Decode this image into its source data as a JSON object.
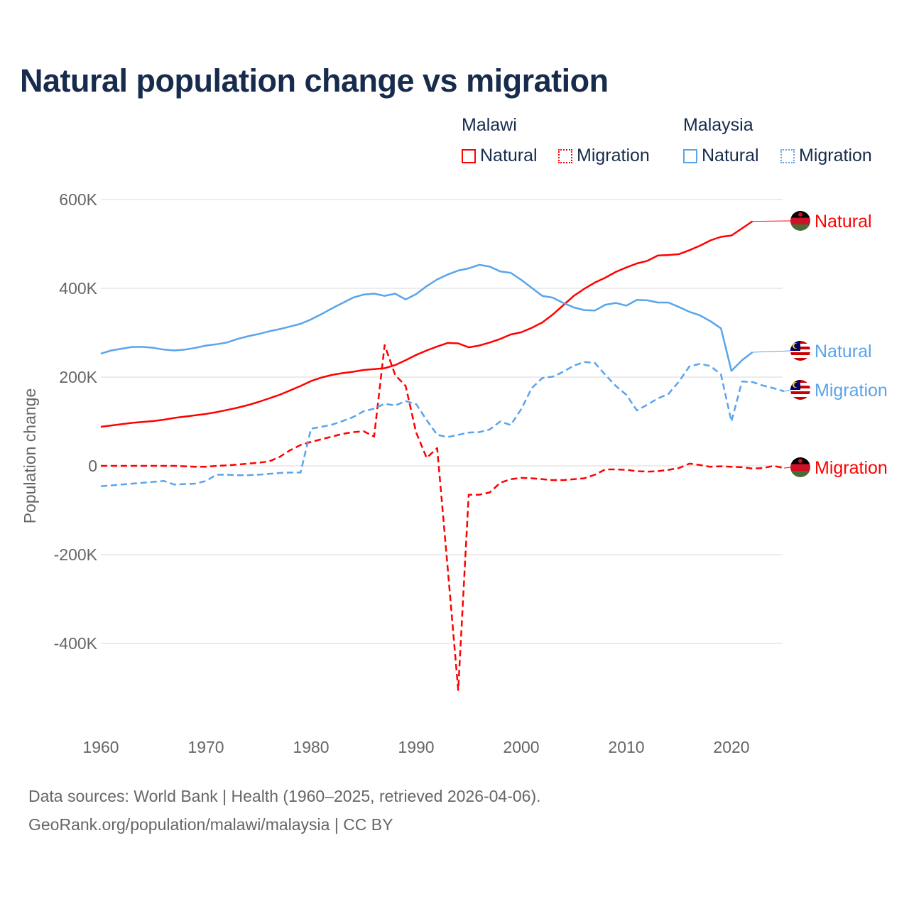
{
  "title": "Natural population change vs migration",
  "legend": {
    "groups": [
      {
        "name": "Malawi",
        "items": [
          {
            "label": "Natural",
            "style": "solid",
            "color": "#ff0000"
          },
          {
            "label": "Migration",
            "style": "dotted",
            "color": "#ff0000"
          }
        ]
      },
      {
        "name": "Malaysia",
        "items": [
          {
            "label": "Natural",
            "style": "solid",
            "color": "#5aa4eb"
          },
          {
            "label": "Migration",
            "style": "dotted",
            "color": "#5aa4eb"
          }
        ]
      }
    ]
  },
  "footer": {
    "line1": "Data sources: World Bank | Health (1960–2025, retrieved 2026-04-06).",
    "line2": "GeoRank.org/population/malawi/malaysia | CC BY"
  },
  "chart_data": {
    "type": "line",
    "title": "Natural population change vs migration",
    "xlabel": "",
    "ylabel": "Population change",
    "xlim": [
      1960,
      2025
    ],
    "ylim": [
      -500000,
      600000
    ],
    "x_ticks": [
      1960,
      1970,
      1980,
      1990,
      2000,
      2010,
      2020
    ],
    "x_tick_labels": [
      "1960",
      "1970",
      "1980",
      "1990",
      "2000",
      "2010",
      "2020"
    ],
    "y_ticks": [
      600000,
      400000,
      200000,
      0,
      -200000,
      -400000
    ],
    "y_tick_labels": [
      "600K",
      "400K",
      "200K",
      "0",
      "-200K",
      "-400K"
    ],
    "grid": true,
    "legend_position": "top-right",
    "start_year": 1960,
    "series": [
      {
        "name": "Malawi Natural",
        "end_label": "Natural",
        "country": "Malawi",
        "color": "#ff0000",
        "dash": false,
        "values_k": [
          88,
          91,
          94,
          97,
          99,
          101,
          104,
          108,
          111,
          114,
          117,
          121,
          126,
          131,
          137,
          144,
          152,
          160,
          170,
          180,
          191,
          199,
          205,
          209,
          212,
          216,
          218,
          220,
          227,
          238,
          250,
          260,
          269,
          277,
          276,
          267,
          271,
          278,
          286,
          296,
          301,
          311,
          323,
          341,
          362,
          383,
          399,
          413,
          424,
          437,
          447,
          456,
          462,
          474,
          475,
          477,
          486,
          496,
          508,
          516,
          519,
          535,
          551
        ]
      },
      {
        "name": "Malawi Migration",
        "end_label": "Migration",
        "country": "Malawi",
        "color": "#ff0000",
        "dash": true,
        "values_k": [
          0,
          0,
          0,
          0,
          0,
          0,
          0,
          0,
          -1,
          -2,
          -2,
          0,
          1,
          3,
          5,
          7,
          10,
          20,
          35,
          47,
          54,
          60,
          66,
          72,
          76,
          78,
          66,
          272,
          205,
          180,
          75,
          18,
          40,
          -230,
          -505,
          -65,
          -65,
          -60,
          -38,
          -30,
          -27,
          -28,
          -30,
          -32,
          -32,
          -30,
          -28,
          -20,
          -8,
          -8,
          -9,
          -12,
          -13,
          -12,
          -9,
          -5,
          5,
          2,
          -2,
          -1,
          -2,
          -3,
          -6,
          -5,
          0,
          -5
        ]
      },
      {
        "name": "Malaysia Natural",
        "end_label": "Natural",
        "country": "Malaysia",
        "color": "#5aa4eb",
        "dash": false,
        "values_k": [
          253,
          260,
          264,
          268,
          268,
          266,
          262,
          260,
          262,
          266,
          271,
          274,
          278,
          286,
          292,
          297,
          303,
          308,
          314,
          320,
          330,
          342,
          355,
          367,
          379,
          386,
          388,
          383,
          388,
          375,
          387,
          405,
          420,
          431,
          440,
          445,
          453,
          449,
          438,
          435,
          419,
          401,
          383,
          379,
          367,
          357,
          351,
          350,
          363,
          367,
          361,
          374,
          373,
          368,
          368,
          358,
          347,
          339,
          326,
          310,
          214,
          238,
          256
        ]
      },
      {
        "name": "Malaysia Migration",
        "end_label": "Migration",
        "country": "Malaysia",
        "color": "#5aa4eb",
        "dash": true,
        "values_k": [
          -46,
          -44,
          -42,
          -40,
          -38,
          -36,
          -34,
          -42,
          -41,
          -40,
          -34,
          -20,
          -20,
          -21,
          -21,
          -20,
          -18,
          -16,
          -15,
          -15,
          84,
          88,
          93,
          101,
          110,
          123,
          129,
          140,
          136,
          146,
          139,
          103,
          70,
          65,
          70,
          75,
          76,
          82,
          100,
          92,
          128,
          175,
          198,
          201,
          212,
          226,
          234,
          232,
          205,
          180,
          160,
          125,
          138,
          152,
          162,
          190,
          224,
          230,
          225,
          206,
          100,
          190,
          189,
          181,
          175,
          168
        ]
      }
    ]
  }
}
